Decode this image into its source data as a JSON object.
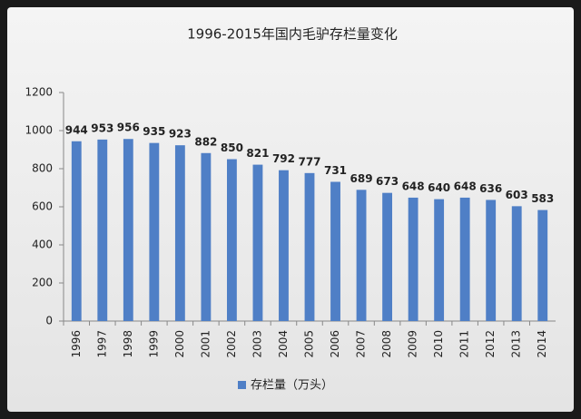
{
  "chart_data": {
    "type": "bar",
    "title": "1996-2015年国内毛驴存栏量变化",
    "categories": [
      "1996",
      "1997",
      "1998",
      "1999",
      "2000",
      "2001",
      "2002",
      "2003",
      "2004",
      "2005",
      "2006",
      "2007",
      "2008",
      "2009",
      "2010",
      "2011",
      "2012",
      "2013",
      "2014"
    ],
    "series": [
      {
        "name": "存栏量（万头）",
        "color": "#4f7fc6",
        "values": [
          944,
          953,
          956,
          935,
          923,
          882,
          850,
          821,
          792,
          777,
          731,
          689,
          673,
          648,
          640,
          648,
          636,
          603,
          583
        ]
      }
    ],
    "ylim": [
      0,
      1200
    ],
    "yticks": [
      0,
      200,
      400,
      600,
      800,
      1000,
      1200
    ],
    "grid": false,
    "legend": "bottom"
  }
}
